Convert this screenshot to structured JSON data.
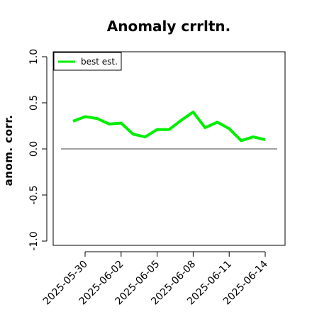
{
  "chart_data": {
    "type": "line",
    "title": "Anomaly crrltn.",
    "ylabel": "anom. corr.",
    "xlabel": "",
    "ylim": [
      -1.0,
      1.0
    ],
    "yticks": [
      -1.0,
      -0.5,
      0.0,
      0.5,
      1.0
    ],
    "ytick_labels": [
      "-1.0",
      "-0.5",
      "0.0",
      "0.5",
      "1.0"
    ],
    "xticks": [
      "2025-05-30",
      "2025-06-02",
      "2025-06-05",
      "2025-06-08",
      "2025-06-11",
      "2025-06-14"
    ],
    "reference_line": 0.0,
    "grid": false,
    "legend_position": "top-left",
    "series": [
      {
        "name": "best est.",
        "color": "#00ee00",
        "x": [
          "2025-05-29",
          "2025-05-30",
          "2025-05-31",
          "2025-06-01",
          "2025-06-02",
          "2025-06-03",
          "2025-06-04",
          "2025-06-05",
          "2025-06-06",
          "2025-06-07",
          "2025-06-08",
          "2025-06-09",
          "2025-06-10",
          "2025-06-11",
          "2025-06-12",
          "2025-06-13",
          "2025-06-14"
        ],
        "values": [
          0.3,
          0.35,
          0.33,
          0.27,
          0.28,
          0.16,
          0.13,
          0.21,
          0.21,
          0.31,
          0.4,
          0.23,
          0.29,
          0.22,
          0.09,
          0.13,
          0.1
        ]
      }
    ]
  }
}
